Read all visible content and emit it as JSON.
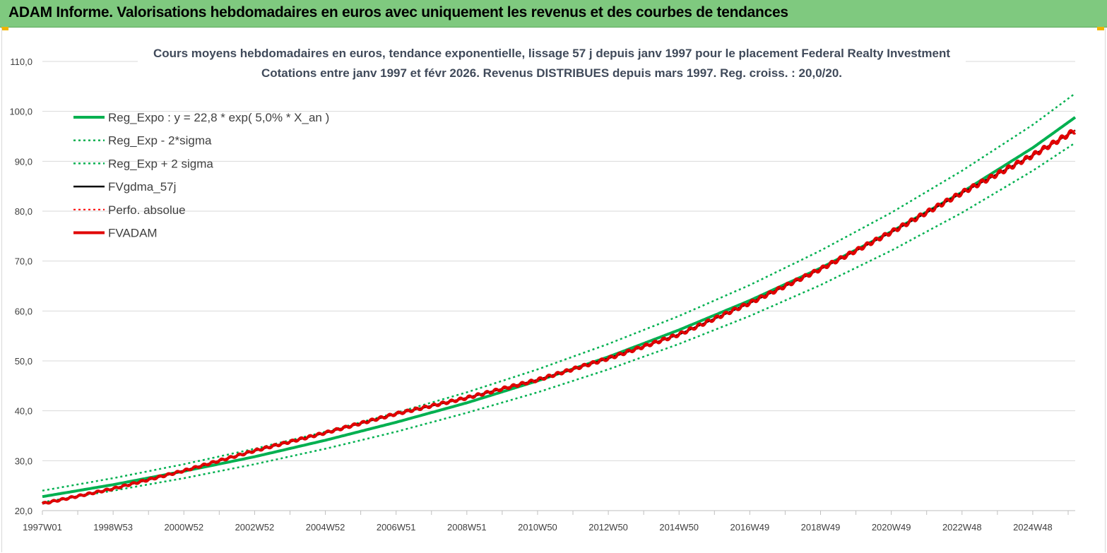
{
  "header": {
    "title": "ADAM Informe. Valorisations hebdomadaires en euros avec uniquement les revenus et des courbes de tendances"
  },
  "colors": {
    "header_bg": "#7fc97f",
    "trend_green": "#00b050",
    "price_black": "#000000",
    "perf_red": "#ff0000",
    "adam_red": "#e00000",
    "grid": "#d9d9d9"
  },
  "chart_data": {
    "type": "line",
    "title": "Cours moyens hebdomadaires en euros, tendance exponentielle, lissage 57 j depuis janv 1997  pour le placement Federal Realty Investment",
    "subtitle": "Cotations entre janv 1997  et févr  2026. Revenus DISTRIBUES depuis mars  1997. Reg. croiss. : 20,0/20.",
    "xlabel": "",
    "ylabel": "",
    "ylim": [
      20,
      110
    ],
    "y_ticks": [
      "20,0",
      "30,0",
      "40,0",
      "50,0",
      "60,0",
      "70,0",
      "80,0",
      "90,0",
      "100,0",
      "110,0"
    ],
    "x_range": [
      1997.0,
      2026.2
    ],
    "x_ticks": [
      {
        "label": "1997W01",
        "x": 1997.0
      },
      {
        "label": "1998W53",
        "x": 1999.0
      },
      {
        "label": "2000W52",
        "x": 2001.0
      },
      {
        "label": "2002W52",
        "x": 2003.0
      },
      {
        "label": "2004W52",
        "x": 2005.0
      },
      {
        "label": "2006W51",
        "x": 2007.0
      },
      {
        "label": "2008W51",
        "x": 2009.0
      },
      {
        "label": "2010W50",
        "x": 2011.0
      },
      {
        "label": "2012W50",
        "x": 2013.0
      },
      {
        "label": "2014W50",
        "x": 2015.0
      },
      {
        "label": "2016W49",
        "x": 2017.0
      },
      {
        "label": "2018W49",
        "x": 2019.0
      },
      {
        "label": "2020W49",
        "x": 2021.0
      },
      {
        "label": "2022W48",
        "x": 2023.0
      },
      {
        "label": "2024W48",
        "x": 2025.0
      }
    ],
    "grid": true,
    "legend_position": "top-left",
    "series": [
      {
        "name": "Reg_Expo : y = 22,8 * exp( 5,0% *  X_an )",
        "color": "#00b050",
        "style": "solid",
        "width": 4,
        "x": [
          1997.0,
          1999.0,
          2001.0,
          2003.0,
          2005.0,
          2007.0,
          2009.0,
          2011.0,
          2013.0,
          2015.0,
          2017.0,
          2019.0,
          2021.0,
          2023.0,
          2025.0,
          2026.2
        ],
        "values": [
          22.8,
          25.2,
          27.9,
          30.8,
          34.1,
          37.7,
          41.6,
          46.0,
          50.8,
          56.2,
          62.1,
          68.6,
          75.9,
          83.8,
          92.7,
          98.8
        ]
      },
      {
        "name": "Reg_Exp - 2*sigma",
        "color": "#00b050",
        "style": "dotted",
        "width": 2.5,
        "x": [
          1997.0,
          1999.0,
          2001.0,
          2003.0,
          2005.0,
          2007.0,
          2009.0,
          2011.0,
          2013.0,
          2015.0,
          2017.0,
          2019.0,
          2021.0,
          2023.0,
          2025.0,
          2026.2
        ],
        "values": [
          21.7,
          24.0,
          26.5,
          29.3,
          32.4,
          35.8,
          39.6,
          43.7,
          48.3,
          53.4,
          59.0,
          65.2,
          72.1,
          79.7,
          88.1,
          93.7
        ]
      },
      {
        "name": "Reg_Exp + 2 sigma",
        "color": "#00b050",
        "style": "dotted",
        "width": 2.5,
        "x": [
          1997.0,
          1999.0,
          2001.0,
          2003.0,
          2005.0,
          2007.0,
          2009.0,
          2011.0,
          2013.0,
          2015.0,
          2017.0,
          2019.0,
          2021.0,
          2023.0,
          2025.0,
          2026.2
        ],
        "values": [
          24.0,
          26.5,
          29.3,
          32.4,
          35.8,
          39.6,
          43.7,
          48.3,
          53.4,
          59.0,
          65.2,
          72.1,
          79.7,
          88.1,
          97.3,
          103.6
        ]
      },
      {
        "name": "FVgdma_57j",
        "color": "#000000",
        "style": "solid",
        "width": 2.5,
        "x": [
          1997.0,
          1999.0,
          2001.0,
          2003.0,
          2005.0,
          2007.0,
          2009.0,
          2011.0,
          2013.0,
          2015.0,
          2017.0,
          2019.0,
          2021.0,
          2023.0,
          2025.0,
          2026.2
        ],
        "values": [
          21.4,
          24.4,
          28.0,
          32.0,
          35.6,
          39.4,
          42.6,
          46.2,
          50.5,
          55.3,
          61.6,
          68.4,
          75.8,
          83.7,
          91.2,
          96.2
        ]
      },
      {
        "name": "Perfo. absolue",
        "color": "#ff0000",
        "style": "dotted",
        "width": 2,
        "x": [
          1997.0,
          1999.0,
          2001.0,
          2003.0,
          2005.0,
          2007.0,
          2009.0,
          2011.0,
          2013.0,
          2015.0,
          2017.0,
          2019.0,
          2021.0,
          2023.0,
          2025.0,
          2026.2
        ],
        "values": [
          21.4,
          24.4,
          28.0,
          32.0,
          35.6,
          39.4,
          42.6,
          46.2,
          50.5,
          55.3,
          61.6,
          68.4,
          75.8,
          83.7,
          91.2,
          96.2
        ]
      },
      {
        "name": "FVADAM",
        "color": "#e00000",
        "style": "solid",
        "width": 4,
        "x": [
          1997.0,
          1999.0,
          2001.0,
          2003.0,
          2005.0,
          2007.0,
          2009.0,
          2011.0,
          2013.0,
          2015.0,
          2017.0,
          2019.0,
          2021.0,
          2023.0,
          2025.0,
          2026.2
        ],
        "values": [
          21.4,
          24.4,
          28.0,
          32.0,
          35.6,
          39.4,
          42.6,
          46.2,
          50.5,
          55.3,
          61.6,
          68.4,
          75.8,
          83.7,
          91.2,
          96.2
        ]
      }
    ]
  }
}
